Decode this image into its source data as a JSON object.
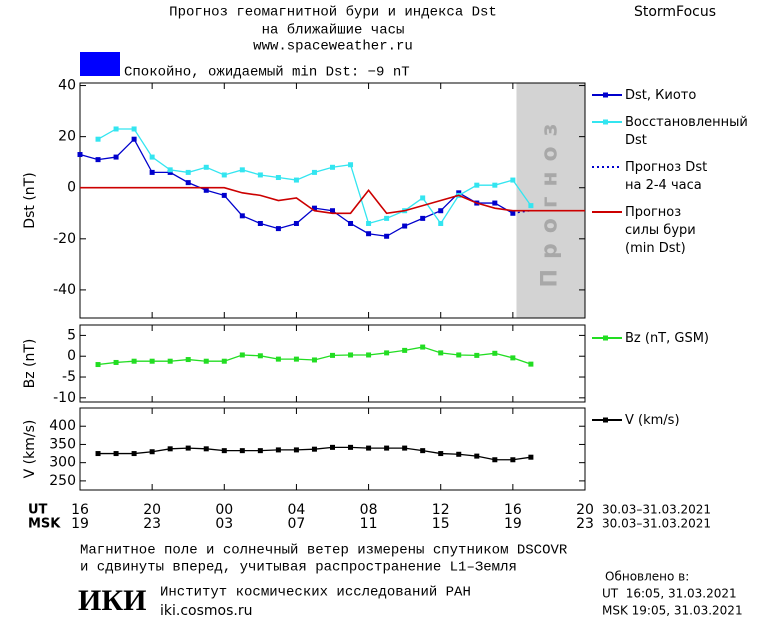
{
  "header": {
    "title": "Прогноз геомагнитной бури и индекса Dst",
    "subtitle": "на ближайшие часы",
    "url": "www.spaceweather.ru",
    "brand": "StormFocus"
  },
  "status": {
    "color": "#0000ff",
    "text": "Спокойно, ожидаемый min Dst: −9 nT"
  },
  "x_axis": {
    "xlim": [
      0,
      28
    ],
    "xticks": [
      {
        "value": 0,
        "label": "16"
      },
      {
        "value": 4,
        "label": "20"
      },
      {
        "value": 8,
        "label": "00"
      },
      {
        "value": 12,
        "label": "04"
      },
      {
        "value": 16,
        "label": "08"
      },
      {
        "value": 20,
        "label": "12"
      },
      {
        "value": 24,
        "label": "16"
      },
      {
        "value": 28,
        "label": "20"
      }
    ],
    "label": "UT",
    "dates": "30.03–31.03.2021",
    "secondary_label": "MSK",
    "secondary_tick_labels": [
      "19",
      "23",
      "03",
      "07",
      "11",
      "15",
      "19",
      "23"
    ],
    "secondary_dates": "30.03–31.03.2021"
  },
  "chart_data": [
    {
      "type": "line",
      "ylabel": "Dst (nT)",
      "ylim": [
        -51,
        41
      ],
      "yticks": [
        40,
        20,
        0,
        -20,
        -40
      ],
      "forecast_region": {
        "x": [
          24.2,
          28
        ],
        "label": "Прогноз",
        "color": "#d3d3d3"
      },
      "series": [
        {
          "name": "Dst, Киото",
          "color": "#0000cc",
          "marker": "square",
          "dash": "solid",
          "x": [
            0,
            1,
            2,
            3,
            4,
            5,
            6,
            7,
            8,
            9,
            10,
            11,
            12,
            13,
            14,
            15,
            16,
            17,
            18,
            19,
            20,
            21,
            22,
            23,
            24
          ],
          "values": [
            13,
            11,
            12,
            19,
            6,
            6,
            2,
            -1,
            -3,
            -11,
            -14,
            -16,
            -14,
            -8,
            -9,
            -14,
            -18,
            -19,
            -15,
            -12,
            -9,
            -2,
            -6,
            -6,
            -10
          ]
        },
        {
          "name": "Восстановленный\nDst",
          "color": "#33e5f0",
          "marker": "square",
          "dash": "solid",
          "x": [
            1,
            2,
            3,
            4,
            5,
            6,
            7,
            8,
            9,
            10,
            11,
            12,
            13,
            14,
            15,
            16,
            17,
            18,
            19,
            20,
            21,
            22,
            23,
            24,
            25
          ],
          "values": [
            19,
            23,
            23,
            12,
            7,
            6,
            8,
            5,
            7,
            5,
            4,
            3,
            6,
            8,
            9,
            -14,
            -12,
            -9,
            -4,
            -14,
            -3,
            1,
            1,
            3,
            -7
          ]
        },
        {
          "name": "Прогноз Dst\nна 2-4 часа",
          "color": "#0000cc",
          "marker": "none",
          "dash": "dotted",
          "x": [
            24,
            25,
            28
          ],
          "values": [
            -10,
            -9,
            -9
          ]
        },
        {
          "name": "Прогноз\nсилы бури\n(min Dst)",
          "color": "#cc0000",
          "marker": "none",
          "dash": "solid",
          "x": [
            0,
            1,
            2,
            3,
            4,
            5,
            6,
            7,
            8,
            9,
            10,
            11,
            12,
            13,
            14,
            15,
            16,
            17,
            18,
            19,
            20,
            21,
            22,
            23,
            24,
            25,
            26,
            27,
            28
          ],
          "values": [
            0,
            0,
            0,
            0,
            0,
            0,
            0,
            0,
            0,
            -2,
            -3,
            -5,
            -4,
            -9,
            -10,
            -10,
            -1,
            -10,
            -9,
            -7,
            -5,
            -3,
            -6,
            -8,
            -9,
            -9,
            -9,
            -9,
            -9
          ]
        }
      ]
    },
    {
      "type": "line",
      "ylabel": "Bz (nT)",
      "ylim": [
        -11,
        7.5
      ],
      "yticks": [
        5,
        0,
        -5,
        -10
      ],
      "series": [
        {
          "name": "Bz (nT, GSM)",
          "color": "#22dd22",
          "marker": "square",
          "dash": "solid",
          "x": [
            1,
            2,
            3,
            4,
            5,
            6,
            7,
            8,
            9,
            10,
            11,
            12,
            13,
            14,
            15,
            16,
            17,
            18,
            19,
            20,
            21,
            22,
            23,
            24,
            25
          ],
          "values": [
            -2,
            -1.5,
            -1.2,
            -1.2,
            -1.2,
            -0.8,
            -1.2,
            -1.2,
            0.3,
            0.1,
            -0.7,
            -0.7,
            -0.9,
            0.2,
            0.3,
            0.3,
            0.8,
            1.4,
            2.2,
            0.8,
            0.3,
            0.2,
            0.7,
            -0.4,
            -1.9
          ]
        }
      ]
    },
    {
      "type": "line",
      "ylabel": "V (km/s)",
      "ylim": [
        225,
        450
      ],
      "yticks": [
        400,
        350,
        300,
        250
      ],
      "series": [
        {
          "name": "V (km/s)",
          "color": "#000000",
          "marker": "square",
          "dash": "solid",
          "x": [
            1,
            2,
            3,
            4,
            5,
            6,
            7,
            8,
            9,
            10,
            11,
            12,
            13,
            14,
            15,
            16,
            17,
            18,
            19,
            20,
            21,
            22,
            23,
            24,
            25
          ],
          "values": [
            325,
            325,
            325,
            330,
            338,
            340,
            338,
            333,
            333,
            333,
            335,
            335,
            337,
            342,
            342,
            340,
            340,
            340,
            333,
            325,
            323,
            318,
            308,
            308,
            315
          ]
        }
      ]
    }
  ],
  "footer": {
    "note": [
      "Магнитное поле и солнечный ветер измерены спутником DSCOVR",
      "и сдвинуты вперед, учитывая распространение L1–Земля"
    ],
    "logo": "ИКИ",
    "institute": "Институт космических исследований РАН",
    "site": "iki.cosmos.ru",
    "updated_label": "Обновлено в:",
    "updated_ut": "UT  16:05, 31.03.2021",
    "updated_msk": "MSK 19:05, 31.03.2021"
  }
}
